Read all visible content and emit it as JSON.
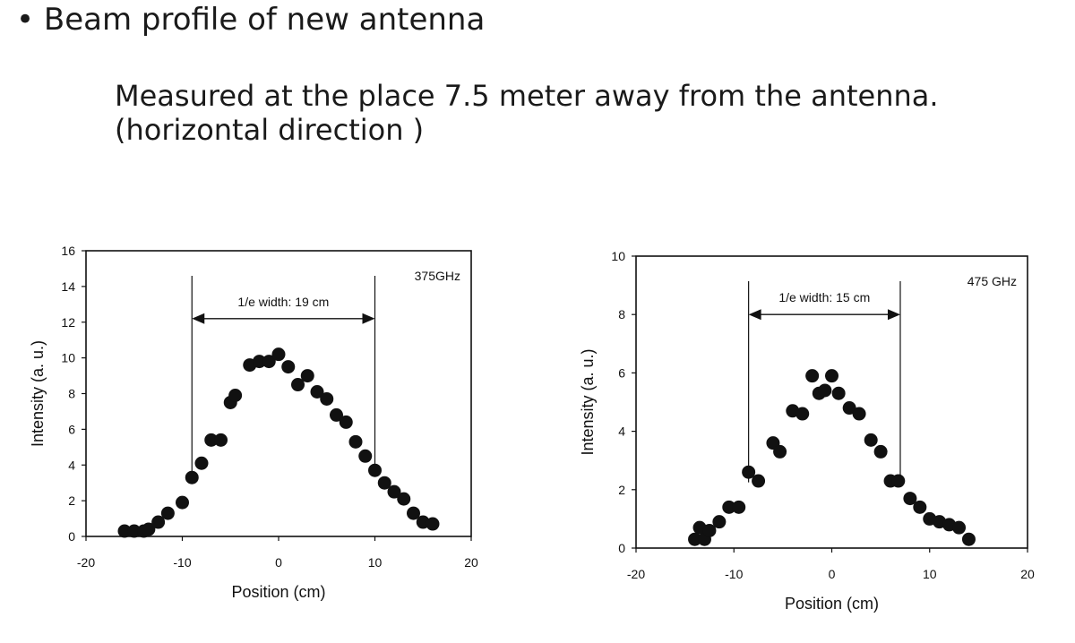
{
  "slide": {
    "bullet": "•",
    "heading": "Beam profile of new antenna",
    "subtitle_line1": "Measured at the place 7.5 meter away from the antenna.",
    "subtitle_line2": "(horizontal direction )"
  },
  "chart_data": [
    {
      "type": "scatter",
      "annotation": "375GHz",
      "xlabel": "Position (cm)",
      "ylabel": "Intensity (a. u.)",
      "xlim": [
        -20,
        20
      ],
      "ylim": [
        0,
        16
      ],
      "xticks": [
        -20,
        -10,
        0,
        10,
        20
      ],
      "yticks": [
        0,
        2,
        4,
        6,
        8,
        10,
        12,
        14,
        16
      ],
      "grid": false,
      "width_marker": {
        "label": "1/e width: 19 cm",
        "x_left": -9,
        "x_right": 10,
        "y_arrow": 12.2
      },
      "points": [
        [
          -16,
          0.3
        ],
        [
          -15,
          0.3
        ],
        [
          -14,
          0.3
        ],
        [
          -13.5,
          0.4
        ],
        [
          -12.5,
          0.8
        ],
        [
          -11.5,
          1.3
        ],
        [
          -10,
          1.9
        ],
        [
          -9,
          3.3
        ],
        [
          -8,
          4.1
        ],
        [
          -7,
          5.4
        ],
        [
          -6,
          5.4
        ],
        [
          -5,
          7.5
        ],
        [
          -4.5,
          7.9
        ],
        [
          -3,
          9.6
        ],
        [
          -2,
          9.8
        ],
        [
          -1,
          9.8
        ],
        [
          0,
          10.2
        ],
        [
          1,
          9.5
        ],
        [
          2,
          8.5
        ],
        [
          3,
          9.0
        ],
        [
          4,
          8.1
        ],
        [
          5,
          7.7
        ],
        [
          6,
          6.8
        ],
        [
          7,
          6.4
        ],
        [
          8,
          5.3
        ],
        [
          9,
          4.5
        ],
        [
          10,
          3.7
        ],
        [
          11,
          3.0
        ],
        [
          12,
          2.5
        ],
        [
          13,
          2.1
        ],
        [
          14,
          1.3
        ],
        [
          15,
          0.8
        ],
        [
          16,
          0.7
        ]
      ]
    },
    {
      "type": "scatter",
      "annotation": "475 GHz",
      "xlabel": "Position (cm)",
      "ylabel": "Intensity (a. u.)",
      "xlim": [
        -20,
        20
      ],
      "ylim": [
        0,
        10
      ],
      "xticks": [
        -20,
        -10,
        0,
        10,
        20
      ],
      "yticks": [
        0,
        2,
        4,
        6,
        8,
        10
      ],
      "grid": false,
      "width_marker": {
        "label": "1/e width: 15 cm",
        "x_left": -8.5,
        "x_right": 7,
        "y_arrow": 8.0
      },
      "points": [
        [
          -14,
          0.3
        ],
        [
          -13.5,
          0.7
        ],
        [
          -13,
          0.3
        ],
        [
          -12.5,
          0.6
        ],
        [
          -11.5,
          0.9
        ],
        [
          -10.5,
          1.4
        ],
        [
          -9.5,
          1.4
        ],
        [
          -8.5,
          2.6
        ],
        [
          -7.5,
          2.3
        ],
        [
          -6,
          3.6
        ],
        [
          -5.3,
          3.3
        ],
        [
          -4,
          4.7
        ],
        [
          -3,
          4.6
        ],
        [
          -2,
          5.9
        ],
        [
          -1.3,
          5.3
        ],
        [
          -0.7,
          5.4
        ],
        [
          0,
          5.9
        ],
        [
          0.7,
          5.3
        ],
        [
          1.8,
          4.8
        ],
        [
          2.8,
          4.6
        ],
        [
          4,
          3.7
        ],
        [
          5,
          3.3
        ],
        [
          6,
          2.3
        ],
        [
          6.8,
          2.3
        ],
        [
          8,
          1.7
        ],
        [
          9,
          1.4
        ],
        [
          10,
          1.0
        ],
        [
          11,
          0.9
        ],
        [
          12,
          0.8
        ],
        [
          13,
          0.7
        ],
        [
          14,
          0.3
        ]
      ]
    }
  ]
}
